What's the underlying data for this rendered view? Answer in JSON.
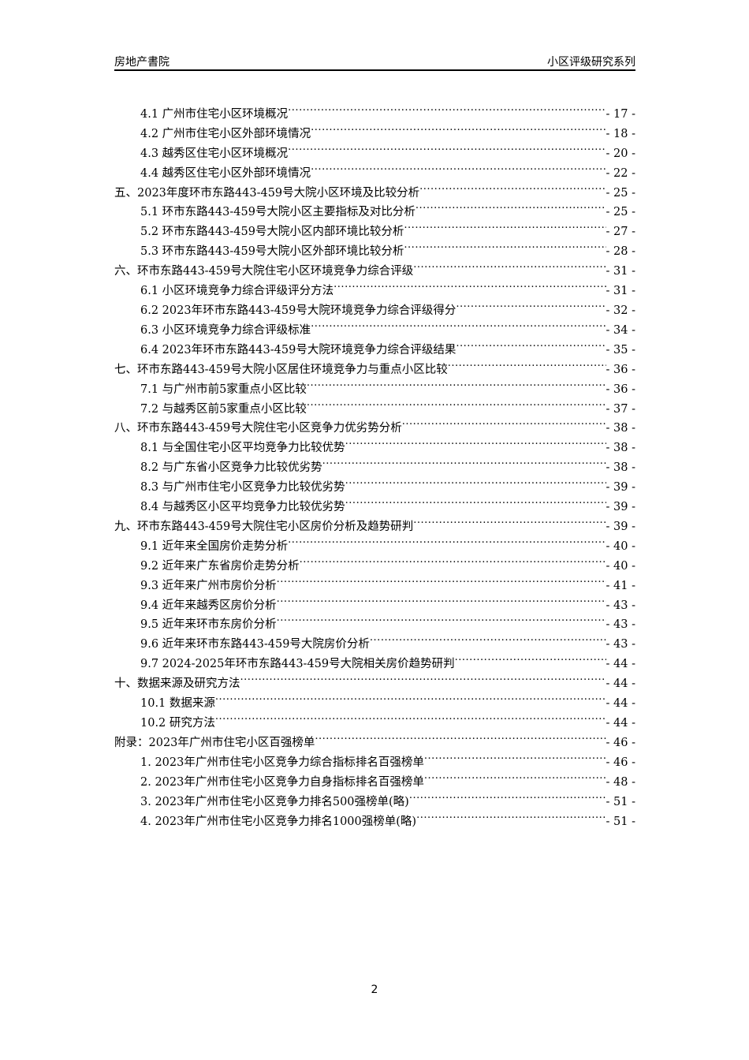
{
  "header": {
    "left": "房地产書院",
    "right": "小区评级研究系列"
  },
  "toc": [
    {
      "level": 1,
      "title": "4.1 广州市住宅小区环境概况",
      "page": "- 17 -"
    },
    {
      "level": 1,
      "title": "4.2 广州市住宅小区外部环境情况",
      "page": "- 18 -"
    },
    {
      "level": 1,
      "title": "4.3 越秀区住宅小区环境概况",
      "page": "- 20 -"
    },
    {
      "level": 1,
      "title": "4.4 越秀区住宅小区外部环境情况",
      "page": "- 22 -"
    },
    {
      "level": 0,
      "title": "五、2023年度环市东路443-459号大院小区环境及比较分析",
      "page": "- 25 -"
    },
    {
      "level": 1,
      "title": "5.1 环市东路443-459号大院小区主要指标及对比分析",
      "page": "- 25 -"
    },
    {
      "level": 1,
      "title": "5.2 环市东路443-459号大院小区内部环境比较分析",
      "page": "- 27 -"
    },
    {
      "level": 1,
      "title": "5.3 环市东路443-459号大院小区外部环境比较分析",
      "page": "- 28 -"
    },
    {
      "level": 0,
      "title": "六、环市东路443-459号大院住宅小区环境竞争力综合评级",
      "page": "- 31 -"
    },
    {
      "level": 1,
      "title": "6.1 小区环境竞争力综合评级评分方法",
      "page": "- 31 -"
    },
    {
      "level": 1,
      "title": "6.2 2023年环市东路443-459号大院环境竞争力综合评级得分",
      "page": "- 32 -"
    },
    {
      "level": 1,
      "title": "6.3 小区环境竞争力综合评级标准",
      "page": "- 34 -"
    },
    {
      "level": 1,
      "title": "6.4 2023年环市东路443-459号大院环境竞争力综合评级结果",
      "page": "- 35 -"
    },
    {
      "level": 0,
      "title": "七、环市东路443-459号大院小区居住环境竞争力与重点小区比较",
      "page": "- 36 -"
    },
    {
      "level": 1,
      "title": "7.1 与广州市前5家重点小区比较",
      "page": "- 36 -"
    },
    {
      "level": 1,
      "title": "7.2 与越秀区前5家重点小区比较",
      "page": "- 37 -"
    },
    {
      "level": 0,
      "title": "八、环市东路443-459号大院住宅小区竞争力优劣势分析",
      "page": "- 38 -"
    },
    {
      "level": 1,
      "title": "8.1 与全国住宅小区平均竞争力比较优势",
      "page": "- 38 -"
    },
    {
      "level": 1,
      "title": "8.2 与广东省小区竞争力比较优劣势",
      "page": "- 38 -"
    },
    {
      "level": 1,
      "title": "8.3 与广州市住宅小区竞争力比较优劣势",
      "page": "- 39 -"
    },
    {
      "level": 1,
      "title": "8.4 与越秀区小区平均竞争力比较优劣势",
      "page": "- 39 -"
    },
    {
      "level": 0,
      "title": "九、环市东路443-459号大院住宅小区房价分析及趋势研判",
      "page": "- 39 -"
    },
    {
      "level": 1,
      "title": "9.1 近年来全国房价走势分析",
      "page": "- 40 -"
    },
    {
      "level": 1,
      "title": "9.2 近年来广东省房价走势分析",
      "page": "- 40 -"
    },
    {
      "level": 1,
      "title": "9.3 近年来广州市房价分析",
      "page": "- 41 -"
    },
    {
      "level": 1,
      "title": "9.4 近年来越秀区房价分析",
      "page": "- 43 -"
    },
    {
      "level": 1,
      "title": "9.5 近年来环市东房价分析",
      "page": "- 43 -"
    },
    {
      "level": 1,
      "title": "9.6 近年来环市东路443-459号大院房价分析",
      "page": "- 43 -"
    },
    {
      "level": 1,
      "title": "9.7 2024-2025年环市东路443-459号大院相关房价趋势研判",
      "page": "- 44 -"
    },
    {
      "level": 0,
      "title": "十、数据来源及研究方法",
      "page": "- 44 -"
    },
    {
      "level": 1,
      "title": "10.1 数据来源",
      "page": "- 44 -"
    },
    {
      "level": 1,
      "title": "10.2 研究方法",
      "page": "- 44 -"
    },
    {
      "level": 0,
      "title": "附录：2023年广州市住宅小区百强榜单",
      "page": "- 46 -"
    },
    {
      "level": 1,
      "title": "1. 2023年广州市住宅小区竞争力综合指标排名百强榜单",
      "page": "- 46 -"
    },
    {
      "level": 1,
      "title": "2. 2023年广州市住宅小区竞争力自身指标排名百强榜单",
      "page": "- 48 -"
    },
    {
      "level": 1,
      "title": "3. 2023年广州市住宅小区竞争力排名500强榜单(略)",
      "page": "- 51 -"
    },
    {
      "level": 1,
      "title": "4. 2023年广州市住宅小区竞争力排名1000强榜单(略)",
      "page": "- 51 -"
    }
  ],
  "footer": {
    "page_number": "2"
  }
}
